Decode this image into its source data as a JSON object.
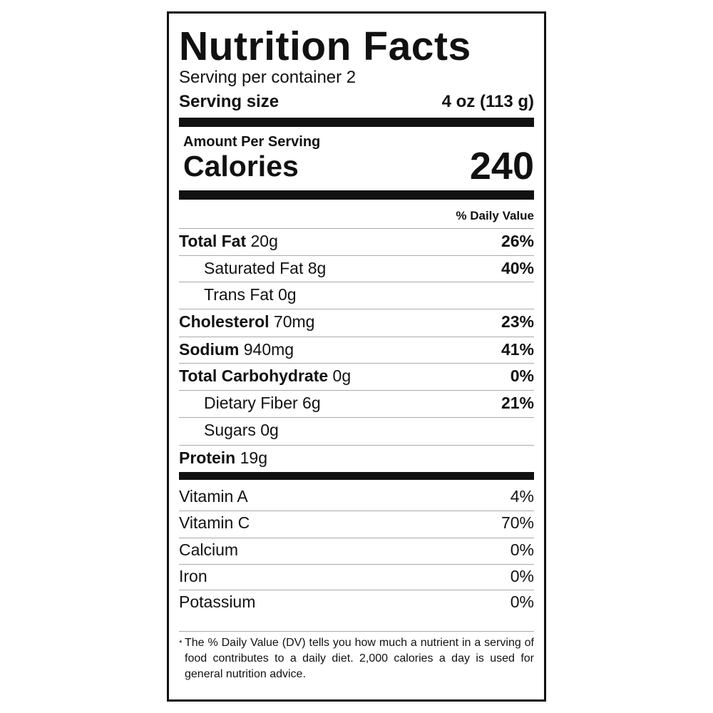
{
  "title": "Nutrition Facts",
  "servings_per_container": "Serving per container 2",
  "serving_size": {
    "label": "Serving size",
    "value": "4 oz (113 g)"
  },
  "amount_per_serving": "Amount Per Serving",
  "calories": {
    "label": "Calories",
    "value": "240"
  },
  "daily_value_header": "% Daily Value",
  "nutrients": [
    {
      "name": "Total Fat",
      "amount": "20g",
      "dv": "26%"
    },
    {
      "name": "Saturated Fat",
      "amount": "8g",
      "dv": "40%"
    },
    {
      "name": "Trans Fat",
      "amount": "0g",
      "dv": ""
    },
    {
      "name": "Cholesterol",
      "amount": "70mg",
      "dv": "23%"
    },
    {
      "name": "Sodium",
      "amount": "940mg",
      "dv": "41%"
    },
    {
      "name": "Total Carbohydrate",
      "amount": "0g",
      "dv": "0%"
    },
    {
      "name": "Dietary Fiber",
      "amount": "6g",
      "dv": "21%"
    },
    {
      "name": "Sugars",
      "amount": "0g",
      "dv": ""
    },
    {
      "name": "Protein",
      "amount": "19g",
      "dv": ""
    }
  ],
  "vitamins": [
    {
      "name": "Vitamin A",
      "dv": "4%"
    },
    {
      "name": "Vitamin C",
      "dv": "70%"
    },
    {
      "name": "Calcium",
      "dv": "0%"
    },
    {
      "name": "Iron",
      "dv": "0%"
    },
    {
      "name": "Potassium",
      "dv": "0%"
    }
  ],
  "footnote": {
    "asterisk": "*",
    "text": "The % Daily Value (DV) tells you how much a nutrient in a serving of food contributes to a daily diet. 2,000 calories a day is used for general nutrition advice."
  }
}
